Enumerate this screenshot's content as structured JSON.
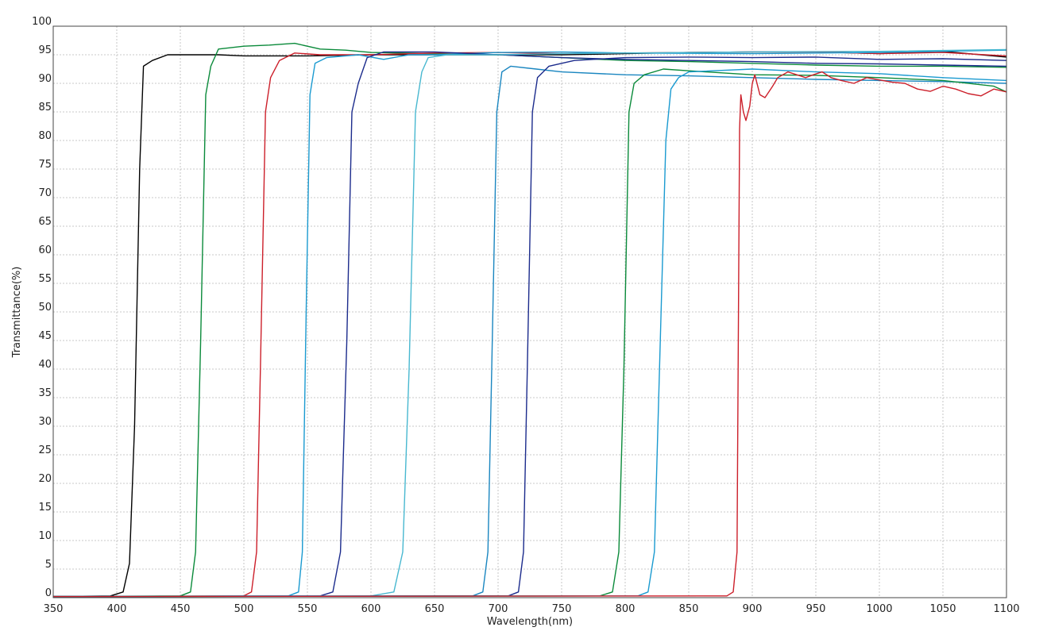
{
  "chart_data": {
    "type": "line",
    "title": "",
    "xlabel": "Wavelength(nm)",
    "ylabel": "Transmittance(%)",
    "xlim": [
      350,
      1100
    ],
    "ylim": [
      0,
      100
    ],
    "grid": true,
    "legend": "none",
    "xticks": [
      "350",
      "400",
      "450",
      "500",
      "550",
      "600",
      "650",
      "700",
      "750",
      "800",
      "850",
      "900",
      "950",
      "1000",
      "1050",
      "1100"
    ],
    "yticks": [
      "0",
      "5",
      "10",
      "15",
      "20",
      "25",
      "30",
      "35",
      "40",
      "45",
      "50",
      "55",
      "60",
      "65",
      "70",
      "75",
      "80",
      "85",
      "90",
      "95",
      "100"
    ],
    "series": [
      {
        "color": "#000000",
        "points": [
          [
            350,
            0.2
          ],
          [
            395,
            0.3
          ],
          [
            405,
            1
          ],
          [
            410,
            6
          ],
          [
            414,
            30
          ],
          [
            418,
            75
          ],
          [
            421,
            93
          ],
          [
            428,
            94
          ],
          [
            440,
            95
          ],
          [
            460,
            95
          ],
          [
            480,
            95
          ],
          [
            500,
            94.8
          ],
          [
            550,
            94.8
          ],
          [
            600,
            95
          ],
          [
            650,
            95
          ],
          [
            700,
            95
          ],
          [
            750,
            95
          ],
          [
            800,
            95.2
          ],
          [
            850,
            95.4
          ],
          [
            900,
            95.5
          ],
          [
            950,
            95.5
          ],
          [
            1000,
            95.2
          ],
          [
            1050,
            95.6
          ],
          [
            1100,
            94.6
          ]
        ]
      },
      {
        "color": "#0a8a3a",
        "points": [
          [
            350,
            0.2
          ],
          [
            450,
            0.3
          ],
          [
            458,
            1
          ],
          [
            462,
            8
          ],
          [
            466,
            45
          ],
          [
            470,
            88
          ],
          [
            474,
            93
          ],
          [
            480,
            96
          ],
          [
            500,
            96.5
          ],
          [
            520,
            96.7
          ],
          [
            540,
            97
          ],
          [
            560,
            96
          ],
          [
            580,
            95.8
          ],
          [
            600,
            95.4
          ],
          [
            650,
            95.2
          ],
          [
            700,
            95
          ],
          [
            750,
            94.5
          ],
          [
            800,
            94
          ],
          [
            850,
            93.8
          ],
          [
            900,
            93.5
          ],
          [
            950,
            93.2
          ],
          [
            1000,
            93
          ],
          [
            1050,
            93
          ],
          [
            1100,
            92.8
          ]
        ]
      },
      {
        "color": "#cc1f2a",
        "points": [
          [
            350,
            0.2
          ],
          [
            500,
            0.3
          ],
          [
            506,
            1
          ],
          [
            510,
            8
          ],
          [
            513,
            40
          ],
          [
            517,
            85
          ],
          [
            521,
            91
          ],
          [
            528,
            94
          ],
          [
            540,
            95.3
          ],
          [
            560,
            95
          ],
          [
            600,
            95
          ],
          [
            650,
            95.3
          ],
          [
            700,
            95.4
          ],
          [
            750,
            95.2
          ],
          [
            800,
            95.3
          ],
          [
            850,
            95.4
          ],
          [
            900,
            95.5
          ],
          [
            950,
            95.5
          ],
          [
            1000,
            95.2
          ],
          [
            1050,
            95.4
          ],
          [
            1100,
            94.8
          ]
        ]
      },
      {
        "color": "#1a9ad0",
        "points": [
          [
            350,
            0.2
          ],
          [
            535,
            0.3
          ],
          [
            543,
            1
          ],
          [
            546,
            8
          ],
          [
            549,
            50
          ],
          [
            552,
            88
          ],
          [
            556,
            93.5
          ],
          [
            565,
            94.5
          ],
          [
            590,
            95
          ],
          [
            610,
            94.2
          ],
          [
            630,
            95
          ],
          [
            650,
            95
          ],
          [
            700,
            95.4
          ],
          [
            750,
            95.5
          ],
          [
            800,
            95.3
          ],
          [
            900,
            95.2
          ],
          [
            1000,
            95.4
          ],
          [
            1100,
            95.8
          ]
        ]
      },
      {
        "color": "#1b2b8c",
        "points": [
          [
            350,
            0.2
          ],
          [
            560,
            0.3
          ],
          [
            570,
            1
          ],
          [
            576,
            8
          ],
          [
            581,
            45
          ],
          [
            585,
            85
          ],
          [
            590,
            90
          ],
          [
            597,
            94.5
          ],
          [
            610,
            95.5
          ],
          [
            650,
            95.5
          ],
          [
            700,
            95
          ],
          [
            750,
            94.5
          ],
          [
            800,
            94.2
          ],
          [
            850,
            94
          ],
          [
            900,
            93.8
          ],
          [
            950,
            93.5
          ],
          [
            1000,
            93.4
          ],
          [
            1050,
            93.2
          ],
          [
            1100,
            93
          ]
        ]
      },
      {
        "color": "#48b8d0",
        "points": [
          [
            350,
            0.2
          ],
          [
            600,
            0.3
          ],
          [
            618,
            1
          ],
          [
            625,
            8
          ],
          [
            630,
            40
          ],
          [
            635,
            85
          ],
          [
            640,
            92
          ],
          [
            645,
            94.5
          ],
          [
            660,
            95
          ],
          [
            700,
            95
          ],
          [
            750,
            95.2
          ],
          [
            800,
            95.3
          ],
          [
            900,
            95.5
          ],
          [
            1000,
            95.6
          ],
          [
            1100,
            95.9
          ]
        ]
      },
      {
        "color": "#1a86c0",
        "points": [
          [
            350,
            0.2
          ],
          [
            680,
            0.3
          ],
          [
            688,
            1
          ],
          [
            692,
            8
          ],
          [
            695,
            40
          ],
          [
            699,
            85
          ],
          [
            703,
            92
          ],
          [
            710,
            93
          ],
          [
            730,
            92.5
          ],
          [
            750,
            92
          ],
          [
            800,
            91.5
          ],
          [
            850,
            91.3
          ],
          [
            900,
            91
          ],
          [
            950,
            90.7
          ],
          [
            1000,
            90.5
          ],
          [
            1050,
            90.3
          ],
          [
            1100,
            90
          ]
        ]
      },
      {
        "color": "#1b2b8c",
        "points": [
          [
            350,
            0.2
          ],
          [
            708,
            0.3
          ],
          [
            716,
            1
          ],
          [
            720,
            8
          ],
          [
            723,
            40
          ],
          [
            727,
            85
          ],
          [
            731,
            91
          ],
          [
            740,
            93
          ],
          [
            760,
            94
          ],
          [
            800,
            94.5
          ],
          [
            850,
            94.6
          ],
          [
            900,
            94.5
          ],
          [
            950,
            94.6
          ],
          [
            1000,
            94.2
          ],
          [
            1050,
            94.3
          ],
          [
            1100,
            94
          ]
        ]
      },
      {
        "color": "#0a8a3a",
        "points": [
          [
            350,
            0.2
          ],
          [
            780,
            0.3
          ],
          [
            790,
            1
          ],
          [
            795,
            8
          ],
          [
            799,
            40
          ],
          [
            803,
            85
          ],
          [
            807,
            90
          ],
          [
            815,
            91.5
          ],
          [
            830,
            92.5
          ],
          [
            850,
            92.2
          ],
          [
            900,
            91.5
          ],
          [
            950,
            91.4
          ],
          [
            1000,
            91
          ],
          [
            1050,
            90.5
          ],
          [
            1090,
            89.5
          ],
          [
            1100,
            88.5
          ]
        ]
      },
      {
        "color": "#1a9ad0",
        "points": [
          [
            350,
            0.2
          ],
          [
            810,
            0.3
          ],
          [
            818,
            1
          ],
          [
            823,
            8
          ],
          [
            827,
            40
          ],
          [
            832,
            80
          ],
          [
            836,
            89
          ],
          [
            842,
            91
          ],
          [
            850,
            92
          ],
          [
            900,
            92.5
          ],
          [
            950,
            92
          ],
          [
            1000,
            91.7
          ],
          [
            1050,
            91
          ],
          [
            1100,
            90.5
          ]
        ]
      },
      {
        "color": "#cc1f2a",
        "points": [
          [
            350,
            0.2
          ],
          [
            880,
            0.3
          ],
          [
            885,
            1
          ],
          [
            888,
            8
          ],
          [
            889,
            45
          ],
          [
            890,
            82
          ],
          [
            891,
            88
          ],
          [
            893,
            85
          ],
          [
            895,
            83.5
          ],
          [
            898,
            86
          ],
          [
            900,
            90
          ],
          [
            902,
            91.5
          ],
          [
            906,
            88
          ],
          [
            910,
            87.5
          ],
          [
            916,
            89.5
          ],
          [
            920,
            91
          ],
          [
            928,
            92
          ],
          [
            935,
            91.5
          ],
          [
            942,
            91
          ],
          [
            948,
            91.5
          ],
          [
            955,
            92
          ],
          [
            962,
            91
          ],
          [
            970,
            90.5
          ],
          [
            980,
            90
          ],
          [
            990,
            91
          ],
          [
            1000,
            90.6
          ],
          [
            1010,
            90.2
          ],
          [
            1020,
            90
          ],
          [
            1030,
            89
          ],
          [
            1040,
            88.6
          ],
          [
            1050,
            89.5
          ],
          [
            1060,
            89
          ],
          [
            1070,
            88.2
          ],
          [
            1080,
            87.8
          ],
          [
            1090,
            89
          ],
          [
            1100,
            88.5
          ]
        ]
      }
    ]
  }
}
